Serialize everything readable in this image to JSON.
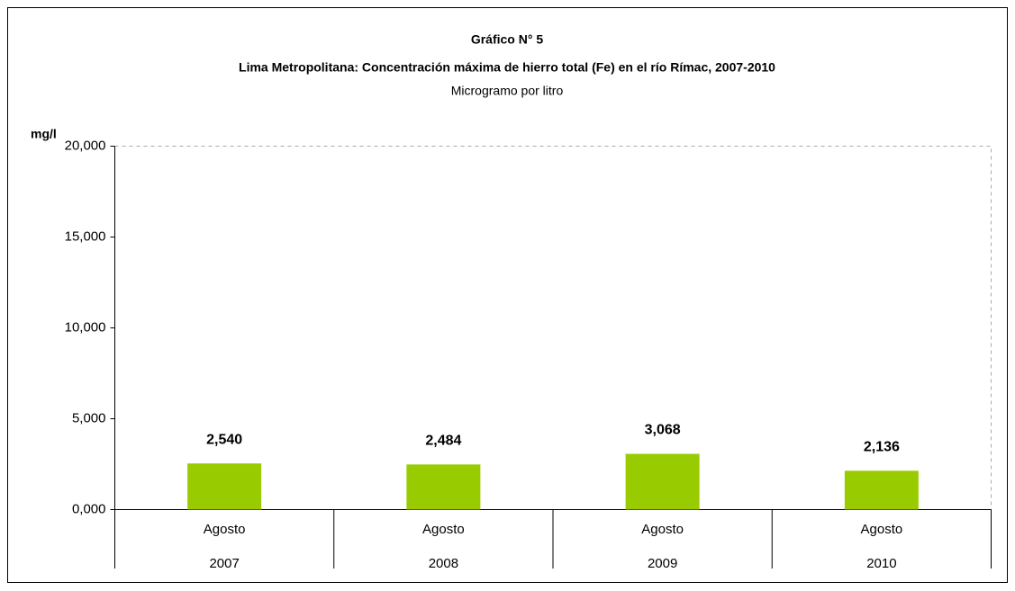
{
  "chart_data": {
    "type": "bar",
    "title": "Gráfico N° 5",
    "subtitle": "Lima Metropolitana: Concentración máxima de hierro total (Fe) en el río Rímac, 2007-2010",
    "unit_note": "Microgramo por litro",
    "y_label": "mg/l",
    "categories": [
      [
        "Agosto",
        "2007"
      ],
      [
        "Agosto",
        "2008"
      ],
      [
        "Agosto",
        "2009"
      ],
      [
        "Agosto",
        "2010"
      ]
    ],
    "values": [
      2540,
      2484,
      3068,
      2136
    ],
    "value_labels": [
      "2,540",
      "2,484",
      "3,068",
      "2,136"
    ],
    "color": "#99cc00",
    "ylim": [
      0,
      20000
    ],
    "yticks": [
      {
        "value": 0,
        "label": "0,000"
      },
      {
        "value": 5000,
        "label": "5,000"
      },
      {
        "value": 10000,
        "label": "10,000"
      },
      {
        "value": 15000,
        "label": "15,000"
      },
      {
        "value": 20000,
        "label": "20,000"
      }
    ]
  }
}
